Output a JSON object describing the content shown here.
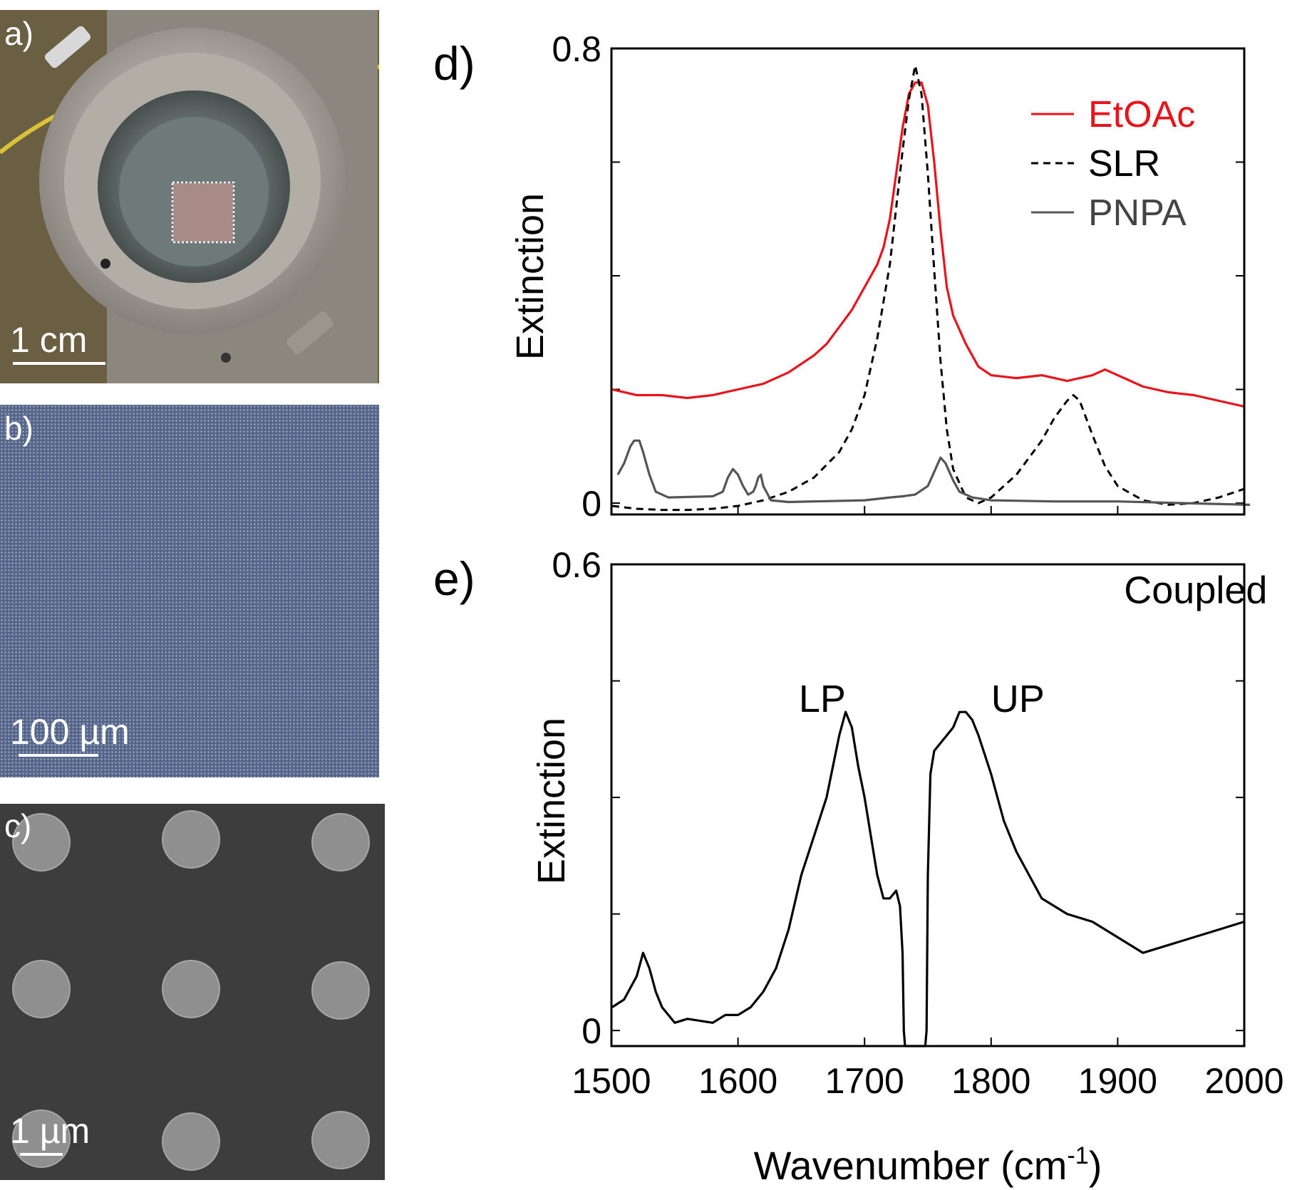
{
  "panel_a": {
    "letter": "a)",
    "scale_label": "1 cm"
  },
  "panel_b": {
    "letter": "b)",
    "scale_label": "100 µm"
  },
  "panel_c": {
    "letter": "c)",
    "scale_label": "1 µm"
  },
  "colors": {
    "etoac": "#e8141c",
    "slr": "#000000",
    "pnpa": "#555555",
    "coupled": "#000000"
  },
  "chart_data": [
    {
      "panel_letter": "d)",
      "type": "line",
      "ylabel": "Extinction",
      "xlim": [
        1500,
        2000
      ],
      "ylim": [
        -0.02,
        0.8
      ],
      "yticks_labeled": [
        {
          "value": 0,
          "label": "0"
        },
        {
          "value": 0.8,
          "label": "0.8"
        }
      ],
      "legend": {
        "position": "top-right",
        "entries": [
          "EtOAc",
          "SLR",
          "PNPA"
        ]
      },
      "series": [
        {
          "name": "EtOAc",
          "style": "solid",
          "color": "#e8141c",
          "x": [
            1500,
            1520,
            1540,
            1560,
            1580,
            1600,
            1620,
            1640,
            1660,
            1670,
            1680,
            1690,
            1700,
            1710,
            1715,
            1720,
            1725,
            1730,
            1735,
            1740,
            1745,
            1750,
            1755,
            1760,
            1765,
            1770,
            1780,
            1790,
            1800,
            1820,
            1840,
            1860,
            1880,
            1890,
            1900,
            1920,
            1940,
            1960,
            1980,
            2000
          ],
          "y": [
            0.2,
            0.19,
            0.19,
            0.185,
            0.19,
            0.2,
            0.21,
            0.23,
            0.26,
            0.28,
            0.31,
            0.34,
            0.38,
            0.42,
            0.45,
            0.5,
            0.58,
            0.66,
            0.72,
            0.74,
            0.74,
            0.7,
            0.6,
            0.48,
            0.38,
            0.33,
            0.28,
            0.24,
            0.225,
            0.22,
            0.225,
            0.215,
            0.225,
            0.235,
            0.225,
            0.205,
            0.195,
            0.19,
            0.18,
            0.17
          ]
        },
        {
          "name": "SLR",
          "style": "dashed",
          "color": "#000000",
          "x": [
            1500,
            1520,
            1540,
            1560,
            1580,
            1600,
            1620,
            1640,
            1660,
            1680,
            1690,
            1700,
            1710,
            1720,
            1725,
            1730,
            1735,
            1740,
            1745,
            1750,
            1755,
            1760,
            1765,
            1770,
            1780,
            1790,
            1800,
            1810,
            1820,
            1830,
            1840,
            1850,
            1860,
            1865,
            1870,
            1880,
            1890,
            1900,
            1920,
            1940,
            1960,
            1980,
            2000
          ],
          "y": [
            -0.005,
            -0.01,
            -0.012,
            -0.012,
            -0.01,
            -0.005,
            0.005,
            0.02,
            0.045,
            0.09,
            0.13,
            0.19,
            0.29,
            0.42,
            0.52,
            0.62,
            0.71,
            0.77,
            0.72,
            0.58,
            0.41,
            0.25,
            0.13,
            0.06,
            0.01,
            0.0,
            0.01,
            0.03,
            0.05,
            0.08,
            0.11,
            0.15,
            0.18,
            0.19,
            0.18,
            0.12,
            0.065,
            0.03,
            0.005,
            -0.003,
            0.0,
            0.01,
            0.025
          ]
        },
        {
          "name": "PNPA",
          "style": "solid",
          "color": "#555555",
          "x": [
            1505,
            1510,
            1515,
            1518,
            1522,
            1525,
            1530,
            1535,
            1545,
            1580,
            1588,
            1592,
            1596,
            1600,
            1604,
            1608,
            1612,
            1614,
            1616,
            1618,
            1620,
            1626,
            1640,
            1700,
            1720,
            1730,
            1740,
            1750,
            1756,
            1760,
            1764,
            1770,
            1775,
            1785,
            1800,
            1850,
            1900,
            1950,
            2005
          ],
          "y": [
            0.05,
            0.07,
            0.1,
            0.11,
            0.11,
            0.09,
            0.05,
            0.02,
            0.01,
            0.012,
            0.02,
            0.045,
            0.06,
            0.05,
            0.03,
            0.015,
            0.02,
            0.03,
            0.045,
            0.05,
            0.03,
            0.005,
            0.002,
            0.005,
            0.01,
            0.012,
            0.015,
            0.03,
            0.06,
            0.08,
            0.07,
            0.04,
            0.02,
            0.01,
            0.005,
            0.003,
            0.003,
            0.0,
            -0.003
          ]
        }
      ]
    },
    {
      "panel_letter": "e)",
      "type": "line",
      "xlabel": "Wavenumber (cm",
      "xlabel_sup": "-1",
      "xlabel_end": ")",
      "ylabel": "Extinction",
      "xlim": [
        1500,
        2000
      ],
      "ylim": [
        -0.02,
        0.6
      ],
      "xticks": [
        1500,
        1600,
        1700,
        1800,
        1900,
        2000
      ],
      "yticks_labeled": [
        {
          "value": 0,
          "label": "0"
        },
        {
          "value": 0.6,
          "label": "0.6"
        }
      ],
      "annotations": [
        {
          "text": "Coupled",
          "x": 1905,
          "y": 0.55
        },
        {
          "text": "LP",
          "x": 1648,
          "y": 0.41
        },
        {
          "text": "UP",
          "x": 1800,
          "y": 0.41
        }
      ],
      "series": [
        {
          "name": "Coupled",
          "style": "solid",
          "color": "#000000",
          "x": [
            1500,
            1510,
            1520,
            1525,
            1530,
            1535,
            1540,
            1550,
            1560,
            1580,
            1590,
            1600,
            1610,
            1620,
            1630,
            1640,
            1650,
            1660,
            1670,
            1675,
            1680,
            1685,
            1690,
            1695,
            1700,
            1710,
            1715,
            1720,
            1725,
            1728,
            1730,
            1731,
            1732,
            1748,
            1749,
            1750,
            1752,
            1755,
            1760,
            1770,
            1775,
            1780,
            1785,
            1790,
            1800,
            1810,
            1820,
            1830,
            1840,
            1860,
            1880,
            1900,
            1920,
            1940,
            1960,
            1980,
            2000
          ],
          "y": [
            0.03,
            0.04,
            0.07,
            0.1,
            0.08,
            0.05,
            0.03,
            0.01,
            0.015,
            0.01,
            0.02,
            0.02,
            0.03,
            0.05,
            0.08,
            0.13,
            0.2,
            0.25,
            0.3,
            0.34,
            0.38,
            0.41,
            0.39,
            0.34,
            0.3,
            0.2,
            0.17,
            0.17,
            0.18,
            0.16,
            0.1,
            0.0,
            -0.03,
            -0.03,
            0.0,
            0.2,
            0.33,
            0.36,
            0.37,
            0.39,
            0.41,
            0.41,
            0.4,
            0.38,
            0.33,
            0.27,
            0.23,
            0.2,
            0.17,
            0.15,
            0.14,
            0.12,
            0.1,
            0.11,
            0.12,
            0.13,
            0.14
          ]
        }
      ]
    }
  ]
}
